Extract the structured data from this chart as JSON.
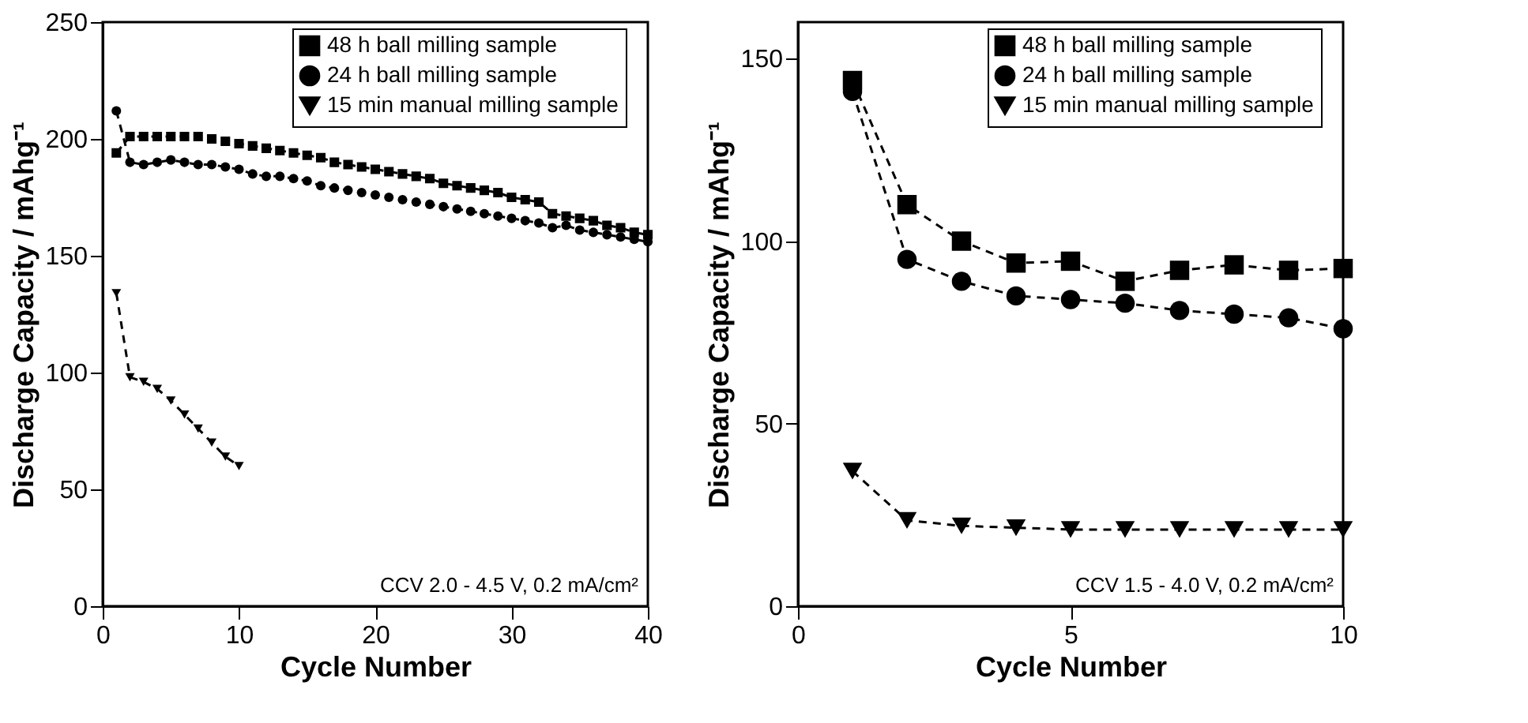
{
  "chart_data": [
    {
      "type": "line",
      "xlabel": "Cycle Number",
      "ylabel": "Discharge Capacity / mAhg⁻¹",
      "xlim": [
        0,
        40
      ],
      "xticks": [
        0,
        10,
        20,
        30,
        40
      ],
      "ylim": [
        0,
        250
      ],
      "yticks": [
        0,
        50,
        100,
        150,
        200,
        250
      ],
      "grid": false,
      "legend": "top right",
      "line_style": "dashed",
      "annotations": [
        "CCV 2.0 - 4.5 V, 0.2 mA/cm²"
      ],
      "series": [
        {
          "name": "48 h ball milling sample",
          "color": "#000000",
          "marker": "square",
          "x": [
            1,
            2,
            3,
            4,
            5,
            6,
            7,
            8,
            9,
            10,
            11,
            12,
            13,
            14,
            15,
            16,
            17,
            18,
            19,
            20,
            21,
            22,
            23,
            24,
            25,
            26,
            27,
            28,
            29,
            30,
            31,
            32,
            33,
            34,
            35,
            36,
            37,
            38,
            39,
            40
          ],
          "values": [
            194,
            201,
            201,
            201,
            201,
            201,
            201,
            200,
            199,
            198,
            197,
            196,
            195,
            194,
            193,
            192,
            190,
            189,
            188,
            187,
            186,
            185,
            184,
            183,
            181,
            180,
            179,
            178,
            177,
            175,
            174,
            173,
            168,
            167,
            166,
            165,
            163,
            162,
            160,
            159
          ]
        },
        {
          "name": "24 h ball milling sample",
          "color": "#000000",
          "marker": "circle",
          "x": [
            1,
            2,
            3,
            4,
            5,
            6,
            7,
            8,
            9,
            10,
            11,
            12,
            13,
            14,
            15,
            16,
            17,
            18,
            19,
            20,
            21,
            22,
            23,
            24,
            25,
            26,
            27,
            28,
            29,
            30,
            31,
            32,
            33,
            34,
            35,
            36,
            37,
            38,
            39,
            40
          ],
          "values": [
            212,
            190,
            189,
            190,
            191,
            190,
            189,
            189,
            188,
            187,
            185,
            184,
            184,
            183,
            182,
            180,
            179,
            178,
            177,
            176,
            175,
            174,
            173,
            172,
            171,
            170,
            169,
            168,
            167,
            166,
            165,
            164,
            162,
            163,
            161,
            160,
            159,
            158,
            157,
            156
          ]
        },
        {
          "name": "15 min manual milling sample",
          "color": "#000000",
          "marker": "triangle",
          "x": [
            1,
            2,
            3,
            4,
            5,
            6,
            7,
            8,
            9,
            10
          ],
          "values": [
            134,
            98,
            96,
            93,
            88,
            82,
            76,
            70,
            64,
            60
          ]
        }
      ]
    },
    {
      "type": "line",
      "xlabel": "Cycle Number",
      "ylabel": "Discharge Capacity / mAhg⁻¹",
      "xlim": [
        0,
        10
      ],
      "xticks": [
        0,
        5,
        10
      ],
      "ylim": [
        0,
        160
      ],
      "yticks": [
        0,
        50,
        100,
        150
      ],
      "grid": false,
      "legend": "top right",
      "line_style": "dashed",
      "annotations": [
        "CCV 1.5 - 4.0 V, 0.2 mA/cm²"
      ],
      "series": [
        {
          "name": "48 h ball milling sample",
          "color": "#000000",
          "marker": "square",
          "x": [
            1,
            2,
            3,
            4,
            5,
            6,
            7,
            8,
            9,
            10
          ],
          "values": [
            144,
            110,
            100,
            94,
            94.5,
            89,
            92,
            93.5,
            92,
            92.5
          ]
        },
        {
          "name": "24 h ball milling sample",
          "color": "#000000",
          "marker": "circle",
          "x": [
            1,
            2,
            3,
            4,
            5,
            6,
            7,
            8,
            9,
            10
          ],
          "values": [
            141,
            95,
            89,
            85,
            84,
            83,
            81,
            80,
            79,
            76
          ]
        },
        {
          "name": "15 min manual milling sample",
          "color": "#000000",
          "marker": "triangle",
          "x": [
            1,
            2,
            3,
            4,
            5,
            6,
            7,
            8,
            9,
            10
          ],
          "values": [
            37,
            23.5,
            22,
            21.5,
            21,
            21,
            21,
            21,
            21,
            21
          ]
        }
      ]
    }
  ]
}
